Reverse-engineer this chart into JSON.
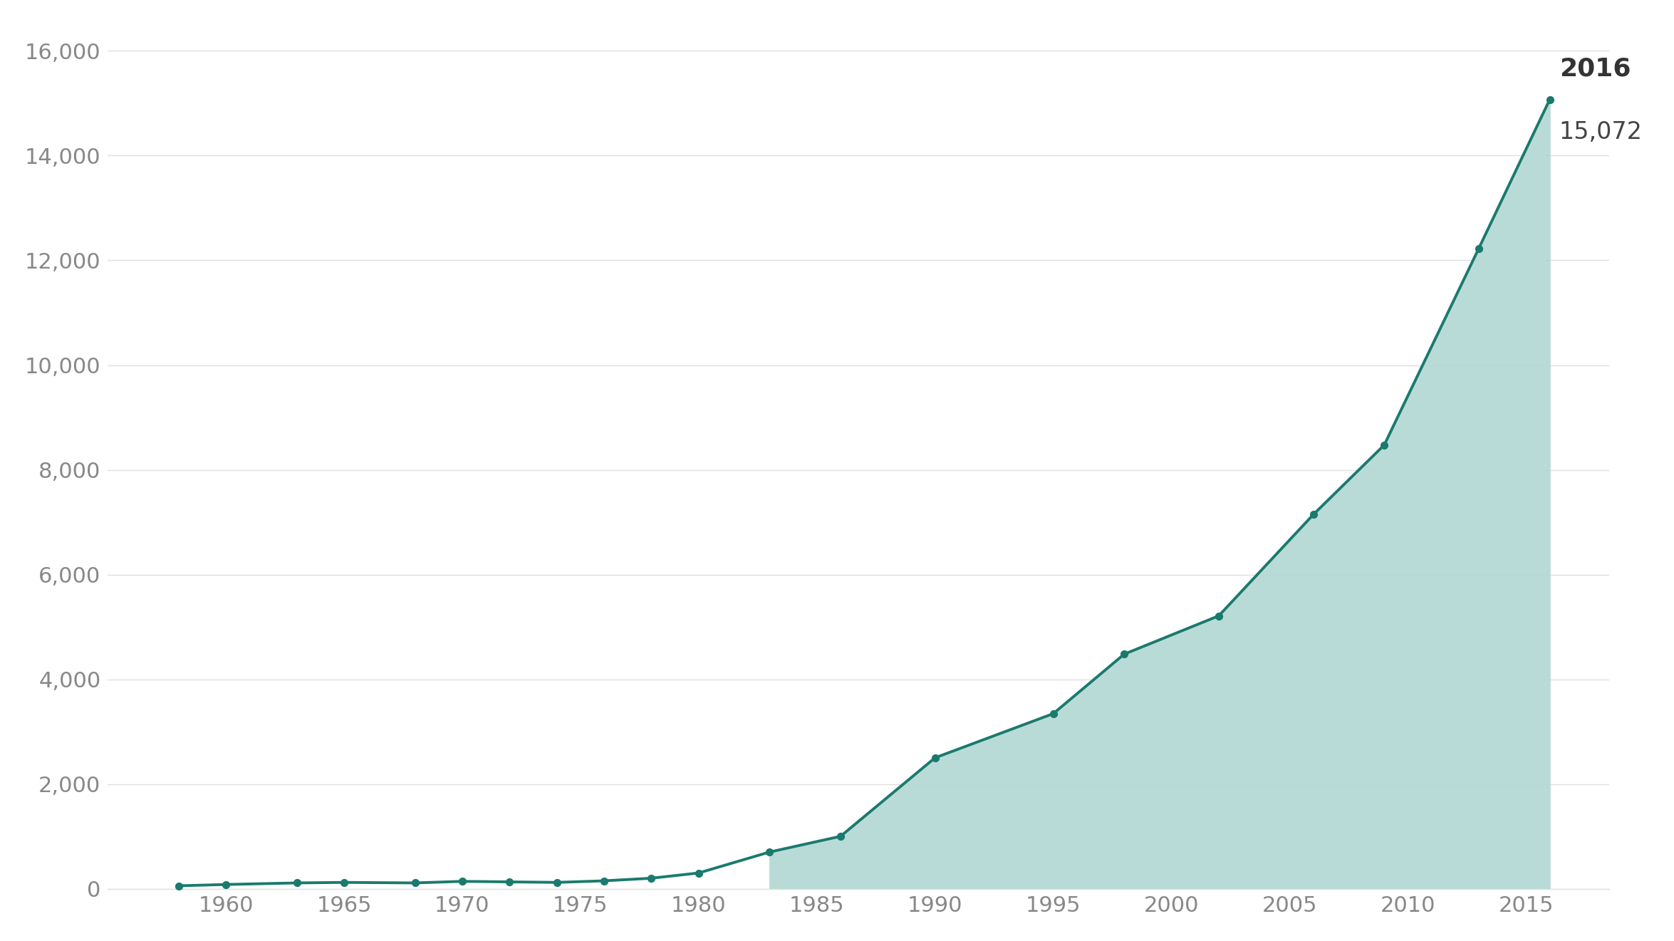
{
  "years": [
    1958,
    1960,
    1963,
    1965,
    1968,
    1970,
    1972,
    1974,
    1976,
    1978,
    1980,
    1983,
    1986,
    1990,
    1995,
    1998,
    2002,
    2006,
    2009,
    2013,
    2016
  ],
  "values": [
    55,
    80,
    110,
    120,
    110,
    140,
    130,
    120,
    150,
    200,
    300,
    700,
    1000,
    2500,
    3343,
    4479,
    5211,
    7145,
    8474,
    12229,
    15072
  ],
  "fill_start_year": 1983,
  "line_color": "#1a7a6e",
  "fill_color": "#b2d8d3",
  "marker_color": "#1a7a6e",
  "background_color": "#ffffff",
  "grid_color": "#e0e0e0",
  "annotation_year": "2016",
  "annotation_value": "15,072",
  "yticks": [
    0,
    2000,
    4000,
    6000,
    8000,
    10000,
    12000,
    14000,
    16000
  ],
  "xtick_start": 1960,
  "xtick_end": 2015,
  "xtick_step": 5,
  "ylim": [
    0,
    16500
  ],
  "xlim_left": 1955,
  "xlim_right": 2018.5,
  "tick_color": "#888888",
  "tick_fontsize": 22,
  "annotation_fontsize_year": 26,
  "annotation_fontsize_value": 24
}
